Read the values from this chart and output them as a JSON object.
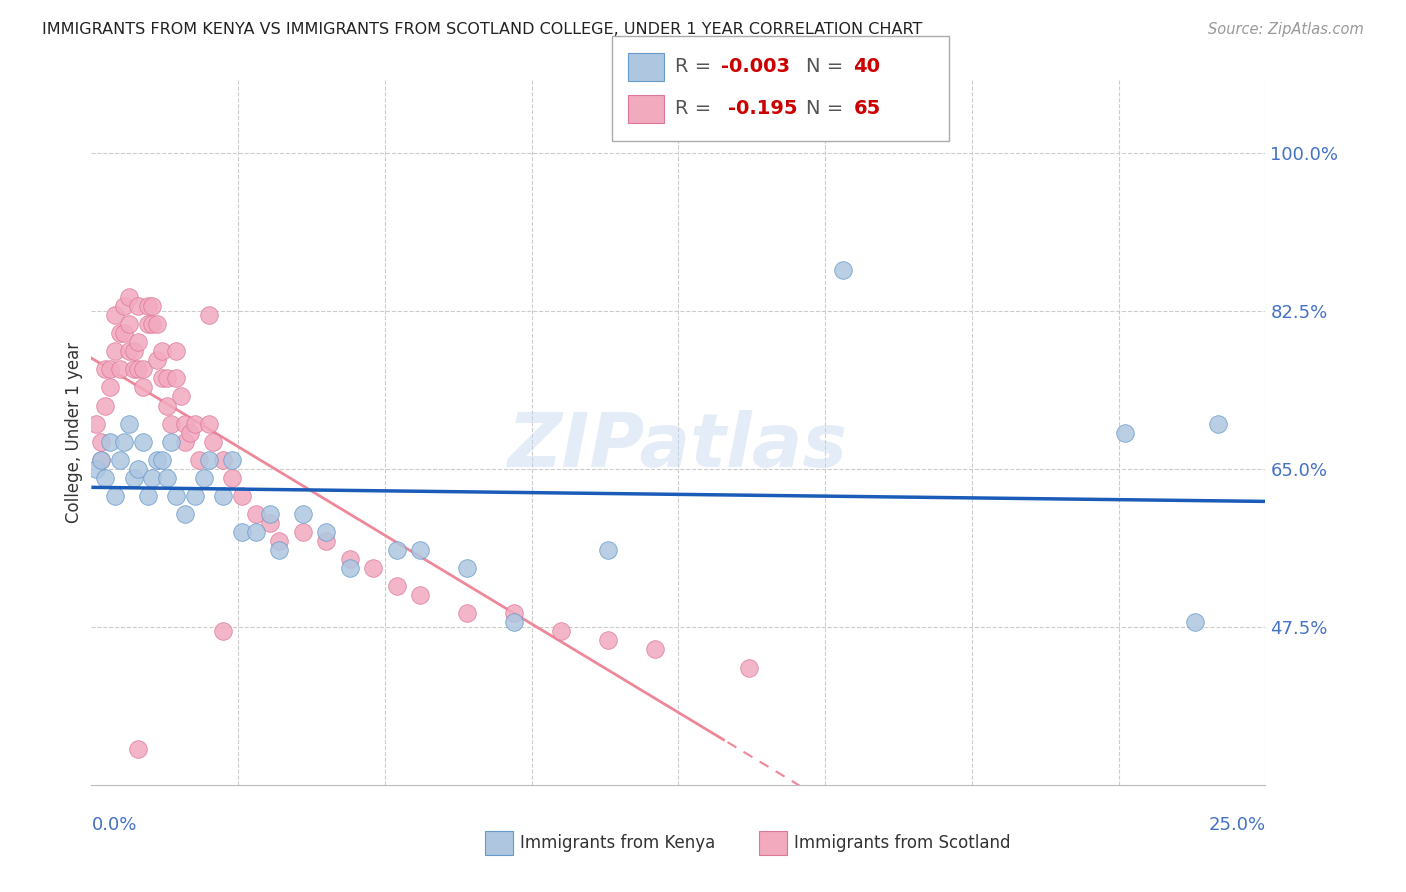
{
  "title": "IMMIGRANTS FROM KENYA VS IMMIGRANTS FROM SCOTLAND COLLEGE, UNDER 1 YEAR CORRELATION CHART",
  "source": "Source: ZipAtlas.com",
  "ylabel": "College, Under 1 year",
  "xlim": [
    0.0,
    0.25
  ],
  "ylim": [
    0.3,
    1.08
  ],
  "ytick_positions": [
    0.475,
    0.65,
    0.825,
    1.0
  ],
  "ytick_labels": [
    "47.5%",
    "65.0%",
    "82.5%",
    "100.0%"
  ],
  "kenya_color": "#aec6e0",
  "scotland_color": "#f2aabf",
  "kenya_edge": "#6699cc",
  "scotland_edge": "#dd7799",
  "kenya_line_color": "#1a5cb8",
  "scotland_line_color": "#ee8899",
  "watermark": "ZIPatlas",
  "kenya_x": [
    0.001,
    0.002,
    0.003,
    0.004,
    0.005,
    0.006,
    0.007,
    0.008,
    0.009,
    0.01,
    0.011,
    0.012,
    0.013,
    0.014,
    0.015,
    0.016,
    0.017,
    0.018,
    0.02,
    0.022,
    0.024,
    0.025,
    0.028,
    0.03,
    0.032,
    0.035,
    0.038,
    0.04,
    0.045,
    0.05,
    0.055,
    0.065,
    0.07,
    0.08,
    0.09,
    0.11,
    0.16,
    0.22,
    0.235,
    0.24
  ],
  "kenya_y": [
    0.65,
    0.66,
    0.64,
    0.68,
    0.62,
    0.66,
    0.68,
    0.7,
    0.64,
    0.65,
    0.68,
    0.62,
    0.64,
    0.66,
    0.66,
    0.64,
    0.68,
    0.62,
    0.6,
    0.62,
    0.64,
    0.66,
    0.62,
    0.66,
    0.58,
    0.58,
    0.6,
    0.56,
    0.6,
    0.58,
    0.54,
    0.56,
    0.56,
    0.54,
    0.48,
    0.56,
    0.87,
    0.69,
    0.48,
    0.7
  ],
  "scotland_x": [
    0.001,
    0.002,
    0.002,
    0.003,
    0.003,
    0.004,
    0.004,
    0.005,
    0.005,
    0.006,
    0.006,
    0.007,
    0.007,
    0.008,
    0.008,
    0.008,
    0.009,
    0.009,
    0.01,
    0.01,
    0.01,
    0.011,
    0.011,
    0.012,
    0.012,
    0.013,
    0.013,
    0.014,
    0.014,
    0.015,
    0.015,
    0.016,
    0.016,
    0.017,
    0.018,
    0.018,
    0.019,
    0.02,
    0.02,
    0.021,
    0.022,
    0.023,
    0.025,
    0.026,
    0.028,
    0.03,
    0.032,
    0.035,
    0.038,
    0.04,
    0.045,
    0.05,
    0.055,
    0.06,
    0.065,
    0.07,
    0.08,
    0.09,
    0.1,
    0.11,
    0.12,
    0.14,
    0.028,
    0.025,
    0.01
  ],
  "scotland_y": [
    0.7,
    0.68,
    0.66,
    0.76,
    0.72,
    0.76,
    0.74,
    0.82,
    0.78,
    0.8,
    0.76,
    0.83,
    0.8,
    0.84,
    0.81,
    0.78,
    0.78,
    0.76,
    0.83,
    0.79,
    0.76,
    0.76,
    0.74,
    0.83,
    0.81,
    0.83,
    0.81,
    0.81,
    0.77,
    0.78,
    0.75,
    0.75,
    0.72,
    0.7,
    0.78,
    0.75,
    0.73,
    0.7,
    0.68,
    0.69,
    0.7,
    0.66,
    0.7,
    0.68,
    0.66,
    0.64,
    0.62,
    0.6,
    0.59,
    0.57,
    0.58,
    0.57,
    0.55,
    0.54,
    0.52,
    0.51,
    0.49,
    0.49,
    0.47,
    0.46,
    0.45,
    0.43,
    0.47,
    0.82,
    0.34
  ],
  "legend_r1_text": "R = ",
  "legend_r1_val": "-0.003",
  "legend_n1_text": "N = ",
  "legend_n1_val": "40",
  "legend_r2_text": "R =  ",
  "legend_r2_val": "-0.195",
  "legend_n2_text": "N = ",
  "legend_n2_val": "65"
}
